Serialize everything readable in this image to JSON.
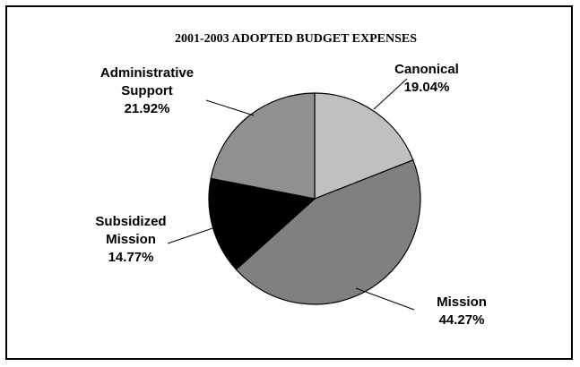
{
  "chart_data": {
    "type": "pie",
    "title": "2001-2003 ADOPTED BUDGET EXPENSES",
    "slices": [
      {
        "label_lines": [
          "Canonical"
        ],
        "percent_label": "19.04%",
        "value": 19.04,
        "color": "#c0c0c0"
      },
      {
        "label_lines": [
          "Mission"
        ],
        "percent_label": "44.27%",
        "value": 44.27,
        "color": "#808080"
      },
      {
        "label_lines": [
          "Subsidized",
          "Mission"
        ],
        "percent_label": "14.77%",
        "value": 14.77,
        "color": "#000000"
      },
      {
        "label_lines": [
          "Administrative",
          "Support"
        ],
        "percent_label": "21.92%",
        "value": 21.92,
        "color": "#909090"
      }
    ],
    "legend": "none",
    "grid": false
  }
}
